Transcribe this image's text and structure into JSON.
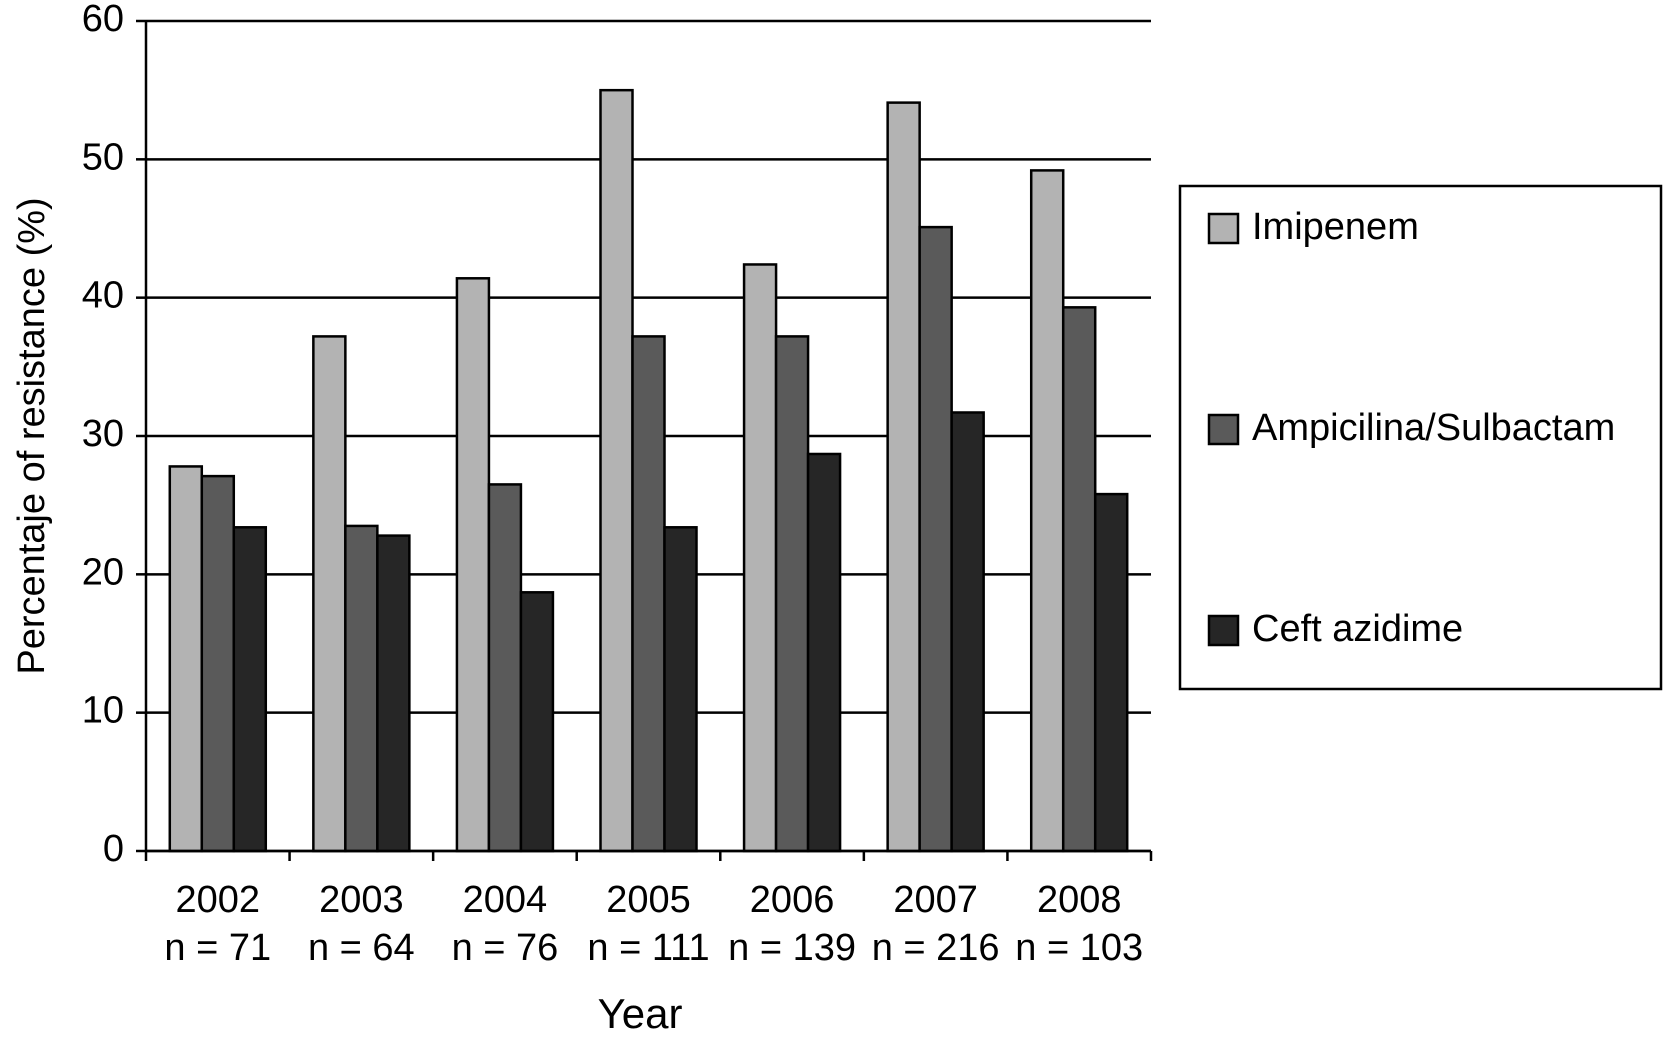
{
  "chart_data": {
    "type": "bar",
    "y_axis_label": "Percentaje of resistance (%)",
    "x_axis_label": "Year",
    "categories": [
      "2002",
      "2003",
      "2004",
      "2005",
      "2006",
      "2007",
      "2008"
    ],
    "sample_sizes": [
      "n = 71",
      "n = 64",
      "n = 76",
      "n = 111",
      "n = 139",
      "n = 216",
      "n = 103"
    ],
    "series": [
      {
        "name": "Imipenem",
        "color": "#b3b3b3",
        "values": [
          27.8,
          37.2,
          41.4,
          55,
          42.4,
          54.1,
          49.2
        ]
      },
      {
        "name": "Ampicilina/Sulbactam",
        "color": "#5a5a5a",
        "values": [
          27.1,
          23.5,
          26.5,
          37.2,
          37.2,
          45.1,
          39.3
        ]
      },
      {
        "name": "Ceft azidime",
        "color": "#262626",
        "values": [
          23.4,
          22.8,
          18.7,
          23.4,
          28.7,
          31.7,
          25.8
        ]
      }
    ],
    "ylim": [
      0,
      60
    ],
    "yticks": [
      0,
      10,
      20,
      30,
      40,
      50,
      60
    ],
    "grid": true,
    "legend": "right"
  }
}
